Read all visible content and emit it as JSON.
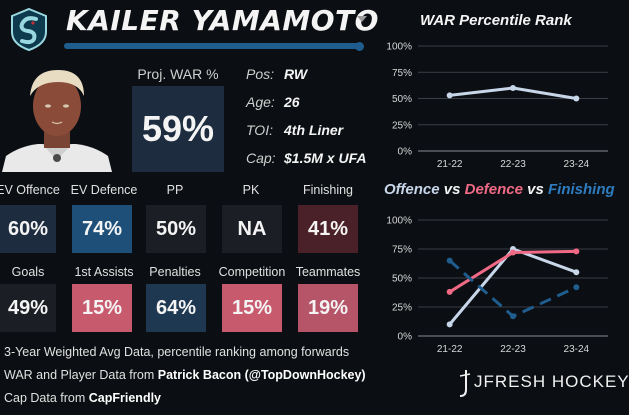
{
  "header": {
    "player_name": "KAILER YAMAMOTO",
    "team_logo_icon": "kraken-logo-icon",
    "dropdown_icon": "caret-down-icon"
  },
  "summary": {
    "war_label": "Proj. WAR %",
    "war_value": "59%",
    "info": [
      {
        "label": "Pos:",
        "value": "RW"
      },
      {
        "label": "Age:",
        "value": "26"
      },
      {
        "label": "TOI:",
        "value": "4th Liner"
      },
      {
        "label": "Cap:",
        "value": "$1.5M x UFA"
      }
    ]
  },
  "stats_row1": [
    {
      "label": "EV Offence",
      "value": "60%",
      "color": "#1d2d3f"
    },
    {
      "label": "EV Defence",
      "value": "74%",
      "color": "#1e4f78"
    },
    {
      "label": "PP",
      "value": "50%",
      "color": "#1b1e24"
    },
    {
      "label": "PK",
      "value": "NA",
      "color": "#1b1e24"
    },
    {
      "label": "Finishing",
      "value": "41%",
      "color": "#4a2128"
    }
  ],
  "stats_row2": [
    {
      "label": "Goals",
      "value": "49%",
      "color": "#1b1e24"
    },
    {
      "label": "1st Assists",
      "value": "15%",
      "color": "#c85a6e"
    },
    {
      "label": "Penalties",
      "value": "64%",
      "color": "#1d3850"
    },
    {
      "label": "Competition",
      "value": "15%",
      "color": "#c85a6e"
    },
    {
      "label": "Teammates",
      "value": "19%",
      "color": "#b65468"
    }
  ],
  "footer": {
    "line1": "3-Year Weighted Avg Data, percentile ranking among forwards",
    "line2_prefix": "WAR and Player Data from ",
    "line2_bold": "Patrick Bacon (@TopDownHockey)",
    "line3_prefix": "Cap Data from ",
    "line3_bold": "CapFriendly"
  },
  "brand": {
    "text": "JFRESH HOCKEY"
  },
  "chart_titles": {
    "war_title": "WAR Percentile Rank",
    "ovd_word1": "Offence",
    "ovd_vs1": " vs ",
    "ovd_word2": "Defence",
    "ovd_vs2": " vs ",
    "ovd_word3": "Finishing"
  },
  "colors": {
    "offence": "#c8d6ea",
    "defence": "#f06a86",
    "finishing": "#1f5d8e",
    "war_line": "#c8d6ea",
    "accent": "#1f5d8e"
  },
  "chart_data": [
    {
      "type": "line",
      "title": "WAR Percentile Rank",
      "categories": [
        "21-22",
        "22-23",
        "23-24"
      ],
      "yticks": [
        "0%",
        "25%",
        "50%",
        "75%",
        "100%"
      ],
      "ylim": [
        0,
        100
      ],
      "grid": true,
      "series": [
        {
          "values": [
            53,
            60,
            50
          ]
        }
      ]
    },
    {
      "type": "line",
      "title": "Offence vs Defence vs Finishing",
      "categories": [
        "21-22",
        "22-23",
        "23-24"
      ],
      "yticks": [
        "0%",
        "25%",
        "50%",
        "75%",
        "100%"
      ],
      "ylim": [
        0,
        100
      ],
      "grid": true,
      "series": [
        {
          "name": "Offence",
          "values": [
            10,
            75,
            55
          ]
        },
        {
          "name": "Defence",
          "values": [
            38,
            72,
            73
          ]
        },
        {
          "name": "Finishing",
          "values": [
            65,
            17,
            42
          ],
          "dashed": true
        }
      ]
    }
  ]
}
